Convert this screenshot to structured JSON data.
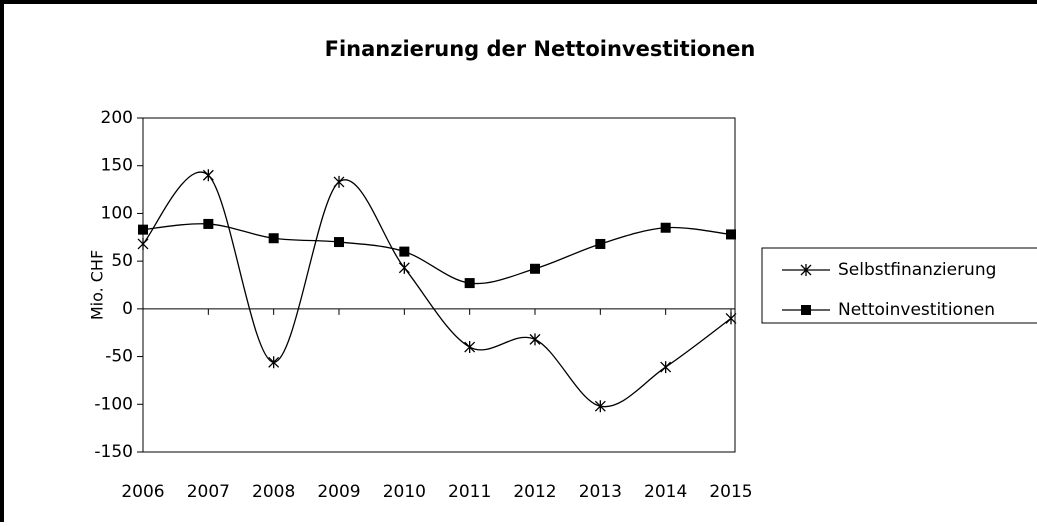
{
  "chart_data": {
    "type": "line",
    "title": "Finanzierung der Nettoinvestitionen",
    "y_label": "Mio. CHF",
    "categories": [
      "2006",
      "2007",
      "2008",
      "2009",
      "2010",
      "2011",
      "2012",
      "2013",
      "2014",
      "2015"
    ],
    "series": [
      {
        "name": "Selbstfinanzierung",
        "color": "#000000",
        "marker": "asterisk",
        "values": [
          68,
          140,
          -56,
          133,
          43,
          -40,
          -32,
          -102,
          -61,
          -10
        ]
      },
      {
        "name": "Nettoinvestitionen",
        "color": "#000000",
        "marker": "square",
        "values": [
          83,
          89,
          74,
          70,
          60,
          27,
          42,
          68,
          85,
          78
        ]
      }
    ],
    "ylim": [
      -150,
      200
    ],
    "yticks": [
      -150,
      -100,
      -50,
      0,
      50,
      100,
      150,
      200
    ],
    "smooth": true,
    "legend": "right"
  }
}
